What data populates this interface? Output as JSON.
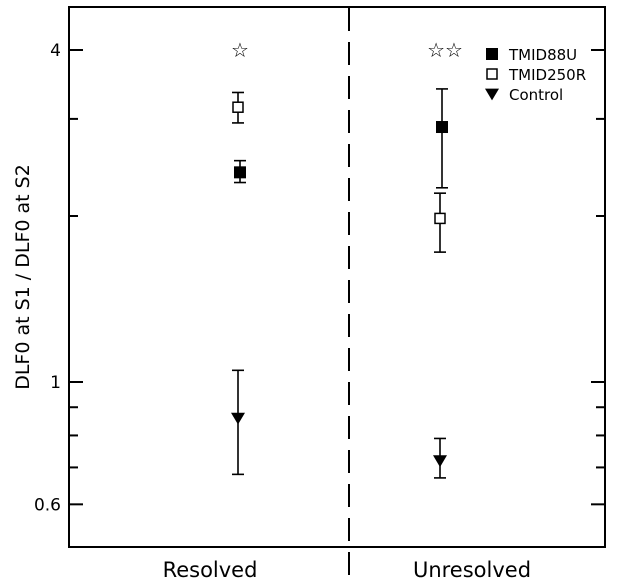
{
  "chart_data": {
    "type": "scatter",
    "ylabel": "DLF0 at S1 / DLF0 at S2",
    "yscale": "log",
    "ylim": [
      0.5,
      5.2
    ],
    "yticks": [
      {
        "value": 0.6,
        "label": "0.6"
      },
      {
        "value": 1,
        "label": "1"
      },
      {
        "value": 4,
        "label": "4"
      }
    ],
    "categories": [
      "Resolved",
      "Unresolved"
    ],
    "legend_position": "top-right",
    "series": [
      {
        "name": "TMID88U",
        "marker": "filled-square",
        "values": [
          2.4,
          2.9
        ],
        "err_low": [
          2.3,
          2.25
        ],
        "err_high": [
          2.52,
          3.4
        ]
      },
      {
        "name": "TMID250R",
        "marker": "open-square",
        "values": [
          3.15,
          1.98
        ],
        "err_low": [
          2.95,
          1.72
        ],
        "err_high": [
          3.35,
          2.2
        ]
      },
      {
        "name": "Control",
        "marker": "filled-triangle-down",
        "values": [
          0.86,
          0.72
        ],
        "err_low": [
          0.68,
          0.67
        ],
        "err_high": [
          1.05,
          0.79
        ]
      }
    ],
    "significance": {
      "Resolved": "☆",
      "Unresolved": "☆☆"
    },
    "divider": "dashed vertical line between categories"
  }
}
